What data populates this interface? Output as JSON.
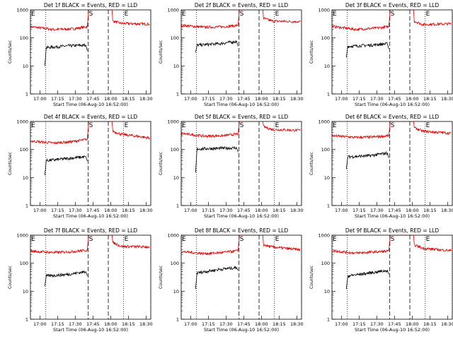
{
  "chart_data": {
    "type": "line",
    "layout": "3x3 grid of panels",
    "y_scale": "log",
    "ylim": [
      1,
      1000
    ],
    "xlim": [
      "16:52",
      "18:34"
    ],
    "y_ticks": [
      "1",
      "10",
      "100",
      "1000"
    ],
    "x_ticks": [
      "17:00",
      "17:15",
      "17:30",
      "17:45",
      "18:00",
      "18:15",
      "18:30"
    ],
    "xlabel": "Start Time (06-Aug-10 16:52:00)",
    "ylabel": "Counts/sec",
    "colors": {
      "events": "#000000",
      "lld": "#e00000"
    },
    "time_markers": [
      {
        "label": "E",
        "time": "16:52",
        "style": "dotted"
      },
      {
        "label": "S",
        "time": "17:41",
        "style": "dashed"
      },
      {
        "label": "E",
        "time": "18:11",
        "style": "dotted"
      }
    ],
    "extra_markers": [
      {
        "time": "17:05",
        "style": "dotted"
      },
      {
        "time": "17:58",
        "style": "dashed"
      },
      {
        "time": "18:34",
        "style": "dotted"
      }
    ],
    "panels": [
      {
        "title": "Det 1f BLACK = Events, RED = LLD",
        "events": [
          [
            17.07,
            10
          ],
          [
            17.09,
            45
          ],
          [
            17.4,
            52
          ],
          [
            17.65,
            55
          ],
          [
            17.67,
            35
          ]
        ],
        "lld": [
          [
            16.87,
            250
          ],
          [
            17.2,
            200
          ],
          [
            17.45,
            210
          ],
          [
            17.67,
            250
          ],
          [
            17.69,
            1000
          ],
          [
            18.02,
            1000
          ],
          [
            18.03,
            400
          ],
          [
            18.15,
            330
          ],
          [
            18.55,
            310
          ]
        ]
      },
      {
        "title": "Det 2f BLACK = Events, RED = LLD",
        "events": [
          [
            17.07,
            30
          ],
          [
            17.09,
            55
          ],
          [
            17.4,
            62
          ],
          [
            17.65,
            75
          ],
          [
            17.67,
            50
          ]
        ],
        "lld": [
          [
            16.87,
            280
          ],
          [
            17.2,
            240
          ],
          [
            17.45,
            250
          ],
          [
            17.67,
            280
          ],
          [
            17.69,
            1000
          ],
          [
            18.02,
            1000
          ],
          [
            18.03,
            500
          ],
          [
            18.15,
            400
          ],
          [
            18.55,
            380
          ]
        ]
      },
      {
        "title": "Det 3f BLACK = Events, RED = LLD",
        "events": [
          [
            17.07,
            20
          ],
          [
            17.09,
            50
          ],
          [
            17.4,
            55
          ],
          [
            17.65,
            62
          ],
          [
            17.67,
            40
          ]
        ],
        "lld": [
          [
            16.87,
            260
          ],
          [
            17.2,
            200
          ],
          [
            17.45,
            220
          ],
          [
            17.67,
            250
          ],
          [
            17.69,
            1000
          ],
          [
            18.02,
            1000
          ],
          [
            18.03,
            400
          ],
          [
            18.15,
            300
          ],
          [
            18.55,
            320
          ]
        ]
      },
      {
        "title": "Det 4f BLACK = Events, RED = LLD",
        "events": [
          [
            17.07,
            12
          ],
          [
            17.09,
            40
          ],
          [
            17.4,
            48
          ],
          [
            17.65,
            55
          ],
          [
            17.67,
            38
          ]
        ],
        "lld": [
          [
            16.87,
            200
          ],
          [
            17.2,
            170
          ],
          [
            17.45,
            190
          ],
          [
            17.67,
            230
          ],
          [
            17.69,
            1000
          ],
          [
            18.02,
            1000
          ],
          [
            18.03,
            450
          ],
          [
            18.15,
            350
          ],
          [
            18.55,
            260
          ]
        ]
      },
      {
        "title": "Det 5f BLACK = Events, RED = LLD",
        "events": [
          [
            17.07,
            15
          ],
          [
            17.09,
            105
          ],
          [
            17.4,
            110
          ],
          [
            17.65,
            115
          ],
          [
            17.67,
            80
          ]
        ],
        "lld": [
          [
            16.87,
            370
          ],
          [
            17.2,
            300
          ],
          [
            17.45,
            310
          ],
          [
            17.67,
            360
          ],
          [
            17.69,
            1000
          ],
          [
            18.02,
            1000
          ],
          [
            18.03,
            650
          ],
          [
            18.15,
            520
          ],
          [
            18.55,
            480
          ]
        ]
      },
      {
        "title": "Det 6f BLACK = Events, RED = LLD",
        "events": [
          [
            17.07,
            20
          ],
          [
            17.09,
            55
          ],
          [
            17.4,
            60
          ],
          [
            17.65,
            75
          ],
          [
            17.67,
            50
          ]
        ],
        "lld": [
          [
            16.87,
            310
          ],
          [
            17.2,
            270
          ],
          [
            17.45,
            280
          ],
          [
            17.67,
            310
          ],
          [
            17.69,
            1000
          ],
          [
            18.02,
            1000
          ],
          [
            18.03,
            600
          ],
          [
            18.15,
            450
          ],
          [
            18.55,
            380
          ]
        ]
      },
      {
        "title": "Det 7f BLACK = Events, RED = LLD",
        "events": [
          [
            17.07,
            15
          ],
          [
            17.09,
            35
          ],
          [
            17.4,
            40
          ],
          [
            17.65,
            50
          ],
          [
            17.67,
            35
          ]
        ],
        "lld": [
          [
            16.87,
            270
          ],
          [
            17.2,
            240
          ],
          [
            17.45,
            260
          ],
          [
            17.67,
            290
          ],
          [
            17.69,
            1000
          ],
          [
            18.02,
            1000
          ],
          [
            18.03,
            550
          ],
          [
            18.15,
            400
          ],
          [
            18.55,
            380
          ]
        ]
      },
      {
        "title": "Det 8f BLACK = Events, RED = LLD",
        "events": [
          [
            17.07,
            12
          ],
          [
            17.09,
            45
          ],
          [
            17.4,
            60
          ],
          [
            17.65,
            70
          ],
          [
            17.67,
            55
          ]
        ],
        "lld": [
          [
            16.87,
            260
          ],
          [
            17.2,
            220
          ],
          [
            17.45,
            240
          ],
          [
            17.67,
            280
          ],
          [
            17.69,
            1000
          ],
          [
            18.02,
            1000
          ],
          [
            18.03,
            450
          ],
          [
            18.15,
            380
          ],
          [
            18.55,
            300
          ]
        ]
      },
      {
        "title": "Det 9f BLACK = Events, RED = LLD",
        "events": [
          [
            17.07,
            12
          ],
          [
            17.09,
            35
          ],
          [
            17.4,
            45
          ],
          [
            17.65,
            55
          ],
          [
            17.67,
            40
          ]
        ],
        "lld": [
          [
            16.87,
            280
          ],
          [
            17.2,
            230
          ],
          [
            17.45,
            250
          ],
          [
            17.67,
            270
          ],
          [
            17.69,
            1000
          ],
          [
            18.02,
            1000
          ],
          [
            18.03,
            450
          ],
          [
            18.15,
            340
          ],
          [
            18.55,
            280
          ]
        ]
      }
    ]
  }
}
